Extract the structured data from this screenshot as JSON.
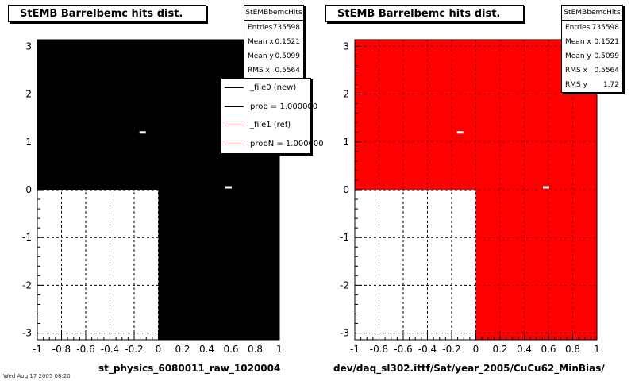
{
  "chart_data": [
    {
      "type": "heatmap",
      "title": "StEMB Barrelbemc hits dist.",
      "fill_color": "#000000",
      "xlim": [
        -1,
        1
      ],
      "ylim": [
        -3.14,
        3.14
      ],
      "x_ticks": [
        "-1",
        "-0.8",
        "-0.6",
        "-0.4",
        "-0.2",
        "0",
        "0.2",
        "0.4",
        "0.6",
        "0.8",
        "1"
      ],
      "y_ticks": [
        "-3",
        "-2",
        "-1",
        "0",
        "1",
        "2",
        "3"
      ],
      "filled_regions": [
        {
          "x": [
            -1,
            1
          ],
          "y": [
            0,
            3.14
          ]
        },
        {
          "x": [
            0,
            1
          ],
          "y": [
            -3.14,
            0
          ]
        }
      ],
      "empty_region": {
        "x": [
          -1,
          0
        ],
        "y": [
          -3.14,
          0
        ]
      },
      "hot_spots": [
        {
          "x": -0.13,
          "y": 1.2
        },
        {
          "x": 0.58,
          "y": 0.05
        }
      ],
      "stats": {
        "name": "StEMBbemcHits",
        "rows": [
          {
            "label": "Entries",
            "value": "735598"
          },
          {
            "label": "Mean x",
            "value": "0.1521"
          },
          {
            "label": "Mean y",
            "value": "0.5099"
          },
          {
            "label": "RMS x",
            "value": "0.5564"
          }
        ]
      },
      "legend": {
        "placement": "top-right",
        "entries": [
          {
            "label": "_file0 (new)",
            "color": "#000000"
          },
          {
            "label": "prob = 1.000000",
            "color": "#000000"
          },
          {
            "label": "_file1 (ref)",
            "color": "#ff0000"
          },
          {
            "label": "probN = 1.000000",
            "color": "#ff0000"
          }
        ]
      },
      "xlabel": "st_physics_6080011_raw_1020004",
      "grid": true
    },
    {
      "type": "heatmap",
      "title": "StEMB Barrelbemc hits dist.",
      "fill_color": "#ff0000",
      "xlim": [
        -1,
        1
      ],
      "ylim": [
        -3.14,
        3.14
      ],
      "x_ticks": [
        "-1",
        "-0.8",
        "-0.6",
        "-0.4",
        "-0.2",
        "0",
        "0.2",
        "0.4",
        "0.6",
        "0.8",
        "1"
      ],
      "y_ticks": [
        "-3",
        "-2",
        "-1",
        "0",
        "1",
        "2",
        "3"
      ],
      "filled_regions": [
        {
          "x": [
            -1,
            1
          ],
          "y": [
            0,
            3.14
          ]
        },
        {
          "x": [
            0,
            1
          ],
          "y": [
            -3.14,
            0
          ]
        }
      ],
      "empty_region": {
        "x": [
          -1,
          0
        ],
        "y": [
          -3.14,
          0
        ]
      },
      "hot_spots": [
        {
          "x": -0.13,
          "y": 1.2
        },
        {
          "x": 0.58,
          "y": 0.05
        }
      ],
      "stats": {
        "name": "StEMBbemcHits",
        "rows": [
          {
            "label": "Entries",
            "value": "735598"
          },
          {
            "label": "Mean x",
            "value": "0.1521"
          },
          {
            "label": "Mean y",
            "value": "0.5099"
          },
          {
            "label": "RMS x",
            "value": "0.5564"
          },
          {
            "label": "RMS y",
            "value": "1.72"
          }
        ]
      },
      "xlabel": "dev/daq_sl302.ittf/Sat/year_2005/CuCu62_MinBias/",
      "grid": true
    }
  ],
  "footer": "Wed Aug 17 2005 08:20"
}
